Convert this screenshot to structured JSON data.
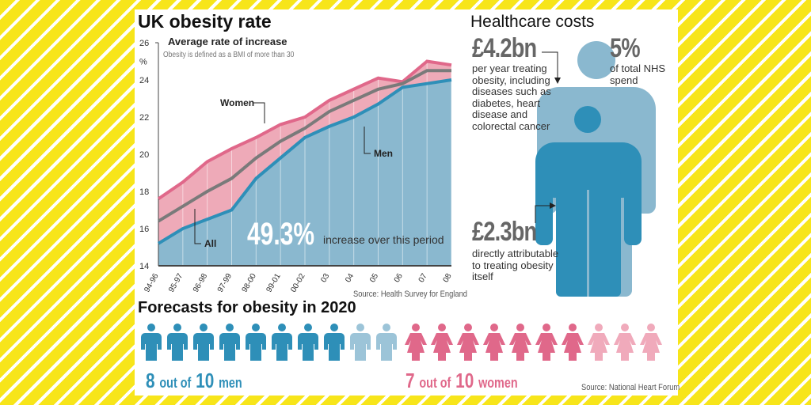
{
  "colors": {
    "women": "#e0688a",
    "all": "#7a7a7a",
    "men": "#2e8fb8",
    "men_fill": "#8ab8cf",
    "women_fill": "#eeaab8",
    "background": "#f7e51a"
  },
  "obesity": {
    "title": "UK obesity rate",
    "headline": "49.3%",
    "headline_text": "increase over this period",
    "source": "Source: Health Survey for England"
  },
  "chart_data": {
    "type": "area",
    "title": "Average rate of increase",
    "subtitle": "Obesity is defined as a BMI of more than 30",
    "ylabel": "%",
    "ylim": [
      14,
      26
    ],
    "yticks": [
      14,
      16,
      18,
      20,
      22,
      24,
      26
    ],
    "categories": [
      "94-96",
      "95-97",
      "96-98",
      "97-99",
      "98-00",
      "99-01",
      "00-02",
      "03",
      "04",
      "05",
      "06",
      "07",
      "08"
    ],
    "series": [
      {
        "name": "Women",
        "values": [
          17.6,
          18.5,
          19.6,
          20.3,
          20.9,
          21.6,
          22.0,
          22.9,
          23.5,
          24.1,
          23.9,
          25.0,
          24.8
        ]
      },
      {
        "name": "All",
        "values": [
          16.4,
          17.2,
          18.0,
          18.7,
          19.8,
          20.7,
          21.4,
          22.3,
          22.9,
          23.5,
          23.8,
          24.5,
          24.5
        ]
      },
      {
        "name": "Men",
        "values": [
          15.2,
          16.0,
          16.5,
          17.0,
          18.7,
          19.8,
          20.9,
          21.5,
          22.0,
          22.7,
          23.6,
          23.8,
          24.0
        ]
      }
    ],
    "grid": true
  },
  "costs": {
    "title": "Healthcare costs",
    "stat1": "£4.2bn",
    "stat1_text": "per year treating obesity, including diseases such as diabetes, heart disease and colorectal cancer",
    "stat2": "5%",
    "stat2_text": "of total NHS spend",
    "stat3": "£2.3bn",
    "stat3_text": "directly attributable to treating obesity itself"
  },
  "forecast": {
    "title": "Forecasts for obesity in 2020",
    "men": {
      "n": "8",
      "of": "out of",
      "total": "10",
      "label": "men",
      "count": 8
    },
    "women": {
      "n": "7",
      "of": "out of",
      "total": "10",
      "label": "women",
      "count": 7
    },
    "source": "Source: National Heart Forum"
  }
}
